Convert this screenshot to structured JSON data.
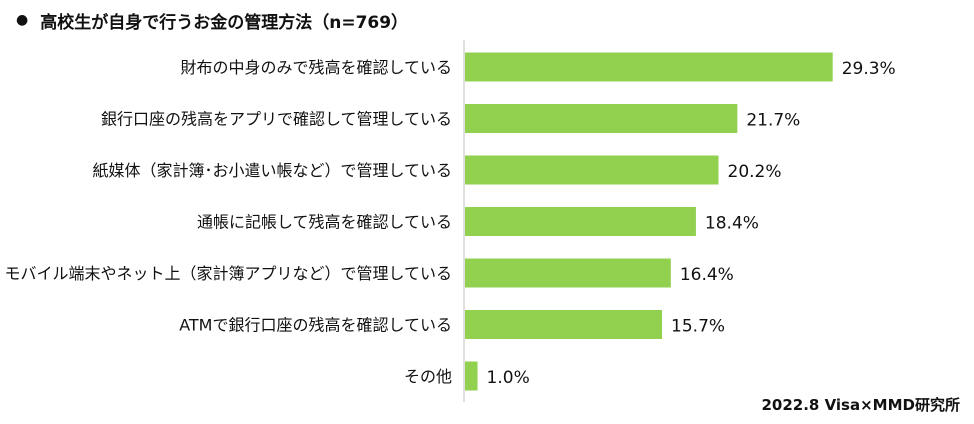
{
  "header": {
    "bullet": "●",
    "title": "高校生が自身で行うお金の管理方法（n=769）"
  },
  "source": "2022.8 Visa×MMD研究所",
  "colors": {
    "bar": "#92d050",
    "axis": "#bfbfbf",
    "text": "#111111"
  },
  "chart_data": {
    "type": "bar",
    "orientation": "horizontal",
    "title": "高校生が自身で行うお金の管理方法（n=769）",
    "categories": [
      "財布の中身のみで残高を確認している",
      "銀行口座の残高をアプリで確認して管理している",
      "紙媒体（家計簿･お小遣い帳など）で管理している",
      "通帳に記帳して残高を確認している",
      "モバイル端末やネット上（家計簿アプリなど）で管理している",
      "ATMで銀行口座の残高を確認している",
      "その他"
    ],
    "values": [
      29.3,
      21.7,
      20.2,
      18.4,
      16.4,
      15.7,
      1.0
    ],
    "value_labels": [
      "29.3%",
      "21.7%",
      "20.2%",
      "18.4%",
      "16.4%",
      "15.7%",
      "1.0%"
    ],
    "unit": "%",
    "xlim": [
      0,
      30
    ],
    "grid": false,
    "legend": "none"
  }
}
